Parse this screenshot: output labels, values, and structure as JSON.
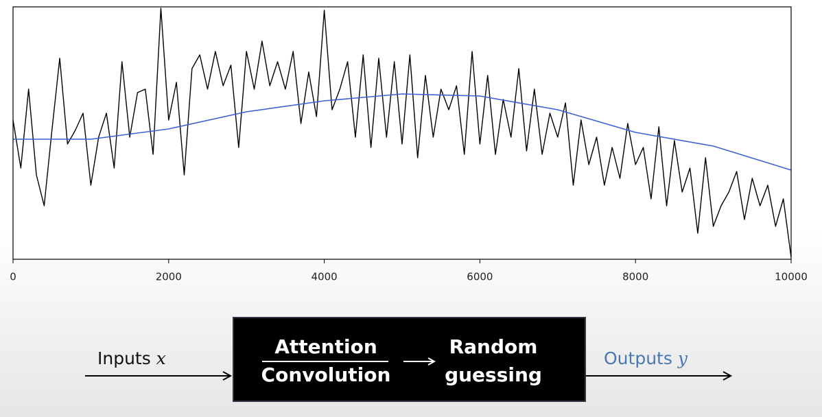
{
  "chart_data": {
    "type": "line",
    "xlim": [
      0,
      10000
    ],
    "xticks": [
      0,
      2000,
      4000,
      6000,
      8000,
      10000
    ],
    "ylim": [
      0,
      368
    ],
    "series": [
      {
        "color": "#000000",
        "x": [
          0,
          100,
          200,
          300,
          400,
          500,
          600,
          700,
          800,
          900,
          1000,
          1100,
          1200,
          1300,
          1400,
          1500,
          1600,
          1700,
          1800,
          1900,
          2000,
          2100,
          2200,
          2300,
          2400,
          2500,
          2600,
          2700,
          2800,
          2900,
          3000,
          3100,
          3200,
          3300,
          3400,
          3500,
          3600,
          3700,
          3800,
          3900,
          4000,
          4100,
          4200,
          4300,
          4400,
          4500,
          4600,
          4700,
          4800,
          4900,
          5000,
          5100,
          5200,
          5300,
          5400,
          5500,
          5600,
          5700,
          5800,
          5900,
          6000,
          6100,
          6200,
          6300,
          6400,
          6500,
          6600,
          6700,
          6800,
          6900,
          7000,
          7100,
          7200,
          7300,
          7400,
          7500,
          7600,
          7700,
          7800,
          7900,
          8000,
          8100,
          8200,
          8300,
          8400,
          8500,
          8600,
          8700,
          8800,
          8900,
          9000,
          9100,
          9200,
          9300,
          9400,
          9500,
          9600,
          9700,
          9800,
          9900,
          10000
        ],
        "values": [
          203,
          133,
          248,
          123,
          78,
          188,
          293,
          168,
          188,
          213,
          108,
          178,
          213,
          133,
          288,
          178,
          243,
          248,
          153,
          366,
          203,
          258,
          123,
          278,
          298,
          248,
          303,
          253,
          283,
          163,
          303,
          248,
          318,
          253,
          288,
          248,
          303,
          198,
          273,
          208,
          363,
          218,
          248,
          288,
          178,
          298,
          163,
          293,
          178,
          288,
          168,
          298,
          148,
          268,
          178,
          248,
          218,
          253,
          153,
          303,
          168,
          268,
          153,
          233,
          178,
          278,
          158,
          248,
          153,
          213,
          178,
          228,
          108,
          203,
          138,
          178,
          108,
          163,
          118,
          198,
          138,
          163,
          88,
          193,
          78,
          173,
          98,
          133,
          38,
          148,
          48,
          78,
          98,
          128,
          58,
          118,
          78,
          108,
          48,
          88,
          3
        ]
      },
      {
        "color": "#3b5fd6",
        "x": [
          0,
          1000,
          2000,
          3000,
          4000,
          5000,
          6000,
          7000,
          8000,
          9000,
          10000
        ],
        "values": [
          175,
          175,
          190,
          215,
          231,
          241,
          238,
          218,
          185,
          165,
          130
        ]
      }
    ]
  },
  "diagram": {
    "input": "Inputs",
    "input_var": "x",
    "numerator": "Attention",
    "denominator": "Convolution",
    "output_block": [
      "Random",
      "guessing"
    ],
    "output": "Outputs",
    "output_var": "y"
  }
}
